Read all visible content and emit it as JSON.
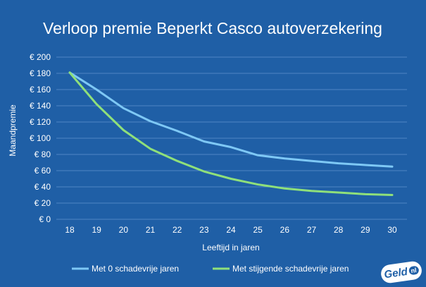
{
  "chart_data": {
    "type": "line",
    "title": "Verloop premie Beperkt Casco autoverzekering",
    "xlabel": "Leeftijd in jaren",
    "ylabel": "Maandpremie",
    "x": [
      18,
      19,
      20,
      21,
      22,
      23,
      24,
      25,
      26,
      27,
      28,
      29,
      30
    ],
    "ylim": [
      0,
      200
    ],
    "yticks": [
      0,
      20,
      40,
      60,
      80,
      100,
      120,
      140,
      160,
      180,
      200
    ],
    "ytick_prefix": "€ ",
    "grid": "horizontal",
    "legend_position": "bottom",
    "series": [
      {
        "name": "Met 0 schadevrije jaren",
        "color": "#7ec8f5",
        "values": [
          181,
          160,
          137,
          121,
          109,
          96,
          89,
          79,
          75,
          72,
          69,
          67,
          65
        ]
      },
      {
        "name": "Met stijgende schadevrije jaren",
        "color": "#8fe07a",
        "values": [
          181,
          142,
          110,
          87,
          72,
          59,
          50,
          43,
          38,
          35,
          33,
          31,
          30
        ]
      }
    ]
  },
  "branding": {
    "logo_text": "Geld",
    "logo_suffix": "nl"
  }
}
